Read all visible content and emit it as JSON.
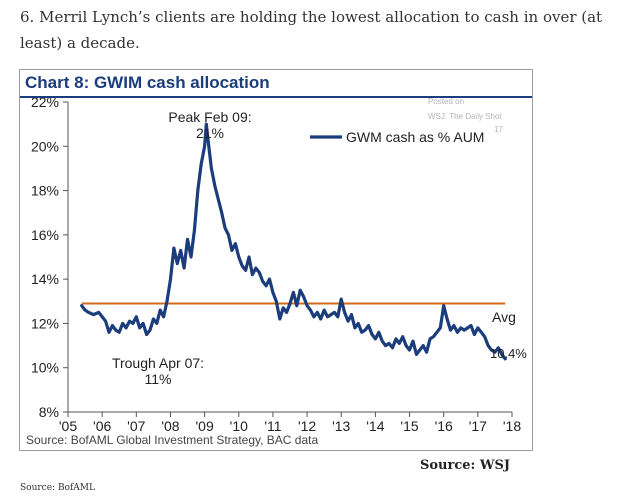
{
  "article": {
    "paragraph": "6. Merril Lynch’s clients are holding the lowest allocation to cash in over (at least) a decade.",
    "source_right": "Source:  WSJ",
    "source_bottom": "Source: BofAML"
  },
  "watermark": {
    "line1": "Posted on",
    "line2": "WSJ: The Daily Shot",
    "line3": "17"
  },
  "colors": {
    "series": "#1b3d7c",
    "average": "#d2691e",
    "title": "#1b3d7c"
  },
  "chart_data": {
    "type": "line",
    "title": "Chart 8: GWIM cash allocation",
    "source": "Source: BofAML Global Investment Strategy, BAC data",
    "xlabel": "",
    "ylabel": "",
    "xlim": [
      2005,
      2018
    ],
    "ylim": [
      8,
      22
    ],
    "x_ticks": [
      {
        "value": 2005,
        "label": "'05"
      },
      {
        "value": 2006,
        "label": "'06"
      },
      {
        "value": 2007,
        "label": "'07"
      },
      {
        "value": 2008,
        "label": "'08"
      },
      {
        "value": 2009,
        "label": "'09"
      },
      {
        "value": 2010,
        "label": "'10"
      },
      {
        "value": 2011,
        "label": "'11"
      },
      {
        "value": 2012,
        "label": "'12"
      },
      {
        "value": 2013,
        "label": "'13"
      },
      {
        "value": 2014,
        "label": "'14"
      },
      {
        "value": 2015,
        "label": "'15"
      },
      {
        "value": 2016,
        "label": "'16"
      },
      {
        "value": 2017,
        "label": "'17"
      },
      {
        "value": 2018,
        "label": "'18"
      }
    ],
    "y_ticks": [
      {
        "value": 8,
        "label": "8%"
      },
      {
        "value": 10,
        "label": "10%"
      },
      {
        "value": 12,
        "label": "12%"
      },
      {
        "value": 14,
        "label": "14%"
      },
      {
        "value": 16,
        "label": "16%"
      },
      {
        "value": 18,
        "label": "18%"
      },
      {
        "value": 20,
        "label": "20%"
      },
      {
        "value": 22,
        "label": "22%"
      }
    ],
    "legend": {
      "label": "GWM cash as % AUM",
      "position": "top-right"
    },
    "series": [
      {
        "name": "GWM cash as % AUM",
        "x": [
          2005.4,
          2005.5,
          2005.6,
          2005.75,
          2005.9,
          2006.0,
          2006.1,
          2006.2,
          2006.3,
          2006.4,
          2006.5,
          2006.6,
          2006.7,
          2006.8,
          2006.9,
          2007.0,
          2007.1,
          2007.2,
          2007.3,
          2007.4,
          2007.5,
          2007.6,
          2007.7,
          2007.8,
          2007.9,
          2008.0,
          2008.1,
          2008.2,
          2008.3,
          2008.4,
          2008.5,
          2008.6,
          2008.7,
          2008.8,
          2008.9,
          2009.0,
          2009.05,
          2009.1,
          2009.2,
          2009.3,
          2009.4,
          2009.5,
          2009.6,
          2009.7,
          2009.8,
          2009.9,
          2010.0,
          2010.1,
          2010.2,
          2010.3,
          2010.4,
          2010.5,
          2010.6,
          2010.7,
          2010.8,
          2010.9,
          2011.0,
          2011.1,
          2011.2,
          2011.3,
          2011.4,
          2011.5,
          2011.6,
          2011.7,
          2011.8,
          2011.9,
          2012.0,
          2012.1,
          2012.2,
          2012.3,
          2012.4,
          2012.5,
          2012.6,
          2012.7,
          2012.8,
          2012.9,
          2013.0,
          2013.1,
          2013.2,
          2013.3,
          2013.4,
          2013.5,
          2013.6,
          2013.7,
          2013.8,
          2013.9,
          2014.0,
          2014.1,
          2014.2,
          2014.3,
          2014.4,
          2014.5,
          2014.6,
          2014.7,
          2014.8,
          2014.9,
          2015.0,
          2015.1,
          2015.2,
          2015.3,
          2015.4,
          2015.5,
          2015.6,
          2015.7,
          2015.8,
          2015.9,
          2016.0,
          2016.1,
          2016.2,
          2016.3,
          2016.4,
          2016.5,
          2016.6,
          2016.7,
          2016.8,
          2016.9,
          2017.0,
          2017.1,
          2017.2,
          2017.3,
          2017.4,
          2017.5,
          2017.6,
          2017.7,
          2017.8
        ],
        "y": [
          12.8,
          12.6,
          12.5,
          12.4,
          12.5,
          12.3,
          12.1,
          11.6,
          11.9,
          11.7,
          11.6,
          12.0,
          11.8,
          12.1,
          12.0,
          12.3,
          11.8,
          12.0,
          11.5,
          11.7,
          12.2,
          12.0,
          12.6,
          12.3,
          13.0,
          14.0,
          15.4,
          14.7,
          15.3,
          14.5,
          15.8,
          15.0,
          16.2,
          18.0,
          19.2,
          20.0,
          21.0,
          20.3,
          19.0,
          18.2,
          17.6,
          17.0,
          16.3,
          16.0,
          15.3,
          15.6,
          15.0,
          14.6,
          14.4,
          15.0,
          14.2,
          14.5,
          14.3,
          13.9,
          13.7,
          14.0,
          13.4,
          13.0,
          12.2,
          12.7,
          12.5,
          12.9,
          13.4,
          12.8,
          13.5,
          13.2,
          12.8,
          12.6,
          12.3,
          12.5,
          12.2,
          12.6,
          12.3,
          12.4,
          12.5,
          12.3,
          13.1,
          12.5,
          12.1,
          12.4,
          11.8,
          12.0,
          11.6,
          11.7,
          11.9,
          11.5,
          11.3,
          11.6,
          11.2,
          11.0,
          11.1,
          10.9,
          11.3,
          11.1,
          11.4,
          11.0,
          10.8,
          11.2,
          10.6,
          10.8,
          11.0,
          10.7,
          11.3,
          11.4,
          11.6,
          11.8,
          12.8,
          12.2,
          11.7,
          11.9,
          11.6,
          11.8,
          11.7,
          11.8,
          11.9,
          11.5,
          11.8,
          11.6,
          11.4,
          11.0,
          10.8,
          10.7,
          10.9,
          10.6,
          10.4
        ]
      }
    ],
    "average": {
      "label": "Avg",
      "value": 12.9,
      "x_start": 2005.4,
      "x_end": 2017.8
    },
    "annotations": {
      "peak": {
        "line1": "Peak Feb 09:",
        "line2": "21%"
      },
      "trough": {
        "line1": "Trough Apr 07:",
        "line2": "11%"
      },
      "last": "10.4%"
    }
  }
}
